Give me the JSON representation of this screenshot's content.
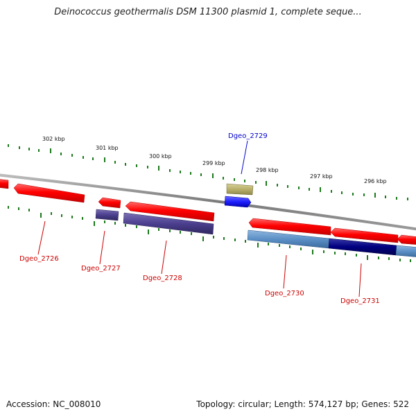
{
  "header": {
    "title": "Deinococcus geothermalis DSM 11300 plasmid 1, complete seque..."
  },
  "footer": {
    "accession": "Accession: NC_008010",
    "summary": "Topology: circular; Length: 574,127 bp; Genes: 522"
  },
  "scale": {
    "kbp_labels": [
      "302 kbp",
      "301 kbp",
      "300 kbp",
      "299 kbp",
      "298 kbp",
      "297 kbp",
      "296 kbp"
    ]
  },
  "genes": {
    "dgeo_2726": "Dgeo_2726",
    "dgeo_2727": "Dgeo_2727",
    "dgeo_2728": "Dgeo_2728",
    "dgeo_2729": "Dgeo_2729",
    "dgeo_2730": "Dgeo_2730",
    "dgeo_2731": "Dgeo_2731"
  },
  "colors": {
    "forward_gene": "#ff0000",
    "protein_bar": "#4b3f8f",
    "highlight_gene": "#1f1fff",
    "rna_bar": "#b8b06a",
    "steel_bar": "#5b8fc5",
    "navy_bar": "#000080",
    "label_red": "#cc0000",
    "label_blue": "#0000cc",
    "tick_green": "#1a7a1a",
    "backbone": "#808080"
  }
}
